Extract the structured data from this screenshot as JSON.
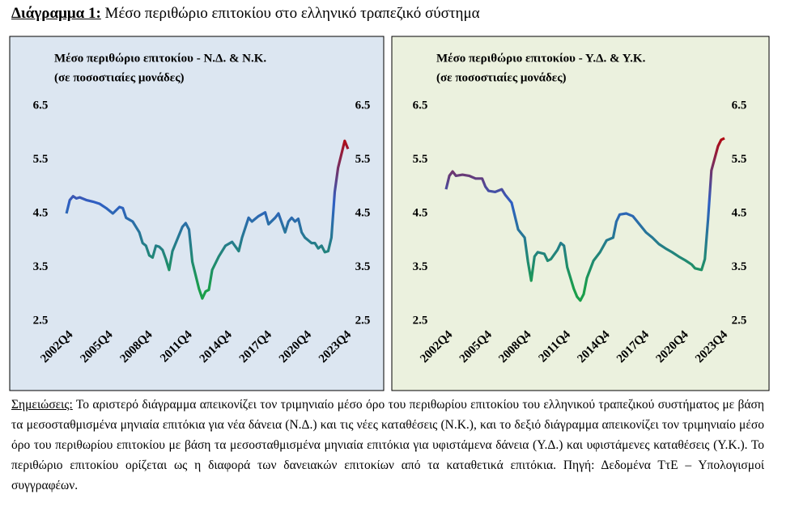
{
  "header": {
    "label": "Διάγραμμα 1:",
    "title": "Μέσο περιθώριο επιτοκίου στο ελληνικό τραπεζικό σύστημα"
  },
  "chart_data": [
    {
      "type": "line",
      "title": "Μέσο περιθώριο επιτοκίου - Ν.Δ. & Ν.Κ.",
      "subtitle": "(σε ποσοστιαίες μονάδες)",
      "x": [
        2002.75,
        2003.0,
        2003.25,
        2003.5,
        2003.75,
        2004.25,
        2004.75,
        2005.25,
        2005.75,
        2006.25,
        2006.75,
        2007.0,
        2007.25,
        2007.75,
        2008.25,
        2008.5,
        2008.75,
        2009.0,
        2009.25,
        2009.5,
        2009.75,
        2010.0,
        2010.25,
        2010.5,
        2010.75,
        2011.25,
        2011.5,
        2011.75,
        2012.0,
        2012.25,
        2012.75,
        2013.0,
        2013.25,
        2013.5,
        2013.75,
        2014.25,
        2014.75,
        2015.25,
        2015.75,
        2016.0,
        2016.5,
        2016.75,
        2017.25,
        2017.75,
        2018.0,
        2018.5,
        2018.75,
        2019.25,
        2019.5,
        2019.75,
        2020.0,
        2020.25,
        2020.5,
        2020.75,
        2021.25,
        2021.5,
        2021.75,
        2022.0,
        2022.25,
        2022.5,
        2022.75,
        2023.0,
        2023.25,
        2023.5,
        2023.75,
        2024.0
      ],
      "values": [
        4.5,
        4.75,
        4.82,
        4.78,
        4.8,
        4.75,
        4.72,
        4.68,
        4.6,
        4.5,
        4.62,
        4.6,
        4.42,
        4.35,
        4.15,
        3.95,
        3.9,
        3.72,
        3.68,
        3.9,
        3.88,
        3.82,
        3.65,
        3.45,
        3.8,
        4.1,
        4.25,
        4.32,
        4.2,
        3.6,
        3.1,
        2.92,
        3.05,
        3.08,
        3.45,
        3.7,
        3.9,
        3.97,
        3.8,
        4.05,
        4.42,
        4.35,
        4.45,
        4.52,
        4.3,
        4.42,
        4.5,
        4.15,
        4.35,
        4.42,
        4.35,
        4.4,
        4.15,
        4.05,
        3.95,
        3.95,
        3.85,
        3.9,
        3.78,
        3.8,
        4.05,
        4.9,
        5.35,
        5.6,
        5.85,
        5.7
      ],
      "xlim": [
        2002.5,
        2024.25
      ],
      "xticks": [
        {
          "value": 2002.75,
          "label": "2002Q4"
        },
        {
          "value": 2005.75,
          "label": "2005Q4"
        },
        {
          "value": 2008.75,
          "label": "2008Q4"
        },
        {
          "value": 2011.75,
          "label": "2011Q4"
        },
        {
          "value": 2014.75,
          "label": "2014Q4"
        },
        {
          "value": 2017.75,
          "label": "2017Q4"
        },
        {
          "value": 2020.75,
          "label": "2020Q4"
        },
        {
          "value": 2023.75,
          "label": "2023Q4"
        }
      ],
      "ylim": [
        2.5,
        6.5
      ],
      "yticks": [
        2.5,
        3.5,
        4.5,
        5.5,
        6.5
      ],
      "grid": false,
      "background": "#dce6f1",
      "colors": [
        "#c00000",
        "#2f5fc4",
        "#1a9e4a"
      ]
    },
    {
      "type": "line",
      "title": "Μέσο περιθώριο επιτοκίου - Υ.Δ. & Υ.Κ.",
      "subtitle": "(σε ποσοστιαίες μονάδες)",
      "x": [
        2002.75,
        2003.0,
        2003.25,
        2003.5,
        2004.0,
        2004.5,
        2005.0,
        2005.5,
        2005.75,
        2006.0,
        2006.5,
        2007.0,
        2007.25,
        2007.75,
        2008.25,
        2008.75,
        2009.0,
        2009.25,
        2009.5,
        2009.75,
        2010.25,
        2010.5,
        2010.75,
        2011.25,
        2011.5,
        2011.75,
        2012.0,
        2012.5,
        2012.75,
        2013.0,
        2013.25,
        2013.5,
        2014.0,
        2014.5,
        2015.0,
        2015.5,
        2015.75,
        2016.0,
        2016.5,
        2017.0,
        2017.5,
        2018.0,
        2018.5,
        2019.0,
        2019.5,
        2020.0,
        2020.5,
        2021.0,
        2021.5,
        2021.75,
        2022.25,
        2022.5,
        2022.75,
        2023.0,
        2023.5,
        2023.75,
        2024.0
      ],
      "values": [
        4.95,
        5.2,
        5.28,
        5.2,
        5.22,
        5.2,
        5.15,
        5.15,
        5.0,
        4.92,
        4.9,
        4.95,
        4.85,
        4.7,
        4.2,
        4.05,
        3.6,
        3.25,
        3.7,
        3.78,
        3.75,
        3.62,
        3.65,
        3.82,
        3.95,
        3.9,
        3.5,
        3.1,
        2.95,
        2.88,
        3.0,
        3.3,
        3.62,
        3.78,
        4.0,
        4.05,
        4.35,
        4.48,
        4.5,
        4.45,
        4.3,
        4.15,
        4.05,
        3.93,
        3.85,
        3.78,
        3.7,
        3.63,
        3.55,
        3.48,
        3.45,
        3.65,
        4.4,
        5.3,
        5.75,
        5.87,
        5.9
      ],
      "xlim": [
        2002.5,
        2024.25
      ],
      "xticks": [
        {
          "value": 2002.75,
          "label": "2002Q4"
        },
        {
          "value": 2005.75,
          "label": "2005Q4"
        },
        {
          "value": 2008.75,
          "label": "2008Q4"
        },
        {
          "value": 2011.75,
          "label": "2011Q4"
        },
        {
          "value": 2014.75,
          "label": "2014Q4"
        },
        {
          "value": 2017.75,
          "label": "2017Q4"
        },
        {
          "value": 2020.75,
          "label": "2020Q4"
        },
        {
          "value": 2023.75,
          "label": "2023Q4"
        }
      ],
      "ylim": [
        2.5,
        6.5
      ],
      "yticks": [
        2.5,
        3.5,
        4.5,
        5.5,
        6.5
      ],
      "grid": false,
      "background": "#ebf1de",
      "colors": [
        "#c00000",
        "#2f5fc4",
        "#1a9e4a"
      ]
    }
  ],
  "notes": {
    "label": "Σημειώσεις:",
    "text": " Το αριστερό διάγραμμα απεικονίζει τον τριμηνιαίο μέσο όρο του περιθωρίου επιτοκίου του ελληνικού τραπεζικού συστήματος με βάση τα μεσοσταθμισμένα μηνιαία επιτόκια για νέα δάνεια (Ν.Δ.) και τις νέες καταθέσεις (Ν.Κ.), και το δεξιό διάγραμμα απεικονίζει τον τριμηνιαίο μέσο όρο του περιθωρίου επιτοκίου με βάση τα μεσοσταθμισμένα μηνιαία επιτόκια για υφιστάμενα δάνεια (Υ.Δ.) και υφιστάμενες καταθέσεις (Υ.Κ.). Το περιθώριο επιτοκίου ορίζεται ως η διαφορά των δανειακών επιτοκίων από τα καταθετικά επιτόκια. Πηγή: Δεδομένα ΤτΕ – Υπολογισμοί συγγραφέων."
  }
}
